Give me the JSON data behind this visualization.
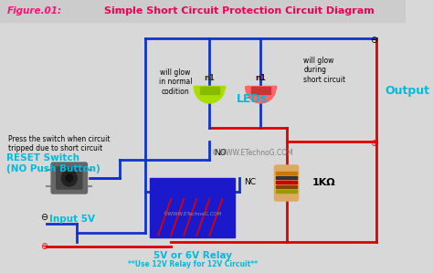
{
  "title": "Simple Short Circuit Protection Circuit Diagram",
  "figure_label": "Figure.01:",
  "bg_color": "#d8d8d8",
  "header_color": "#cccccc",
  "blue": "#1133cc",
  "red": "#dd0000",
  "cyan": "#00bbdd",
  "relay_color": "#1a1acc",
  "switch_color": "#666666",
  "watermark": "©WWW.ETechnoG.COM",
  "label_no": "NO",
  "label_nc": "NC",
  "label_leds": "LEDs",
  "label_output": "Output",
  "label_reset": "RESET Switch\n(NO Push Button)",
  "label_reset_note": "Press the switch when circuit\ntripped due to short circuit",
  "label_relay": "5V or 6V Relay",
  "label_relay_note": "**Use 12V Relay for 12V Circuit**",
  "label_input": "Input 5V",
  "label_1kohm": "1KΩ",
  "label_glow_normal": "will glow\nin normal\ncodition",
  "label_glow_short": "will glow\nduring\nshort circuit"
}
